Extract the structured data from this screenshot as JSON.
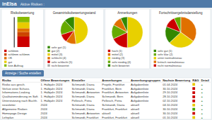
{
  "page": {
    "title": "inElsa",
    "subtitle": "Aktive Risiken :",
    "button": "Anzeige / Suche erstellen"
  },
  "chart_data": [
    {
      "type": "bar",
      "title": "Risikobewertung",
      "stacked": true,
      "categories": [
        null
      ],
      "series": [
        {
          "name": "schlimm",
          "color": "#cc0000",
          "values": [
            35
          ]
        },
        {
          "name": "schlimm schlimm",
          "color": "#cc4400",
          "values": [
            15
          ]
        },
        {
          "name": "OK",
          "color": "#e07000",
          "values": [
            12
          ]
        },
        {
          "name": "gut",
          "color": "#e8cc00",
          "values": [
            20
          ]
        },
        {
          "name": "kein Auftrag",
          "color": "#88bb00",
          "values": [
            18
          ]
        }
      ],
      "ylim": [
        0,
        100
      ],
      "tick_labels": false,
      "legend": "bottom"
    },
    {
      "type": "pie",
      "title": "Gesamtrisikobewertungsstand",
      "values": [
        48,
        12,
        10,
        18,
        12
      ],
      "colors": [
        "#e8d000",
        "#e07000",
        "#cc0000",
        "#66aa00",
        "#338800"
      ],
      "legend": "bottom",
      "legend_items": [
        {
          "label": "sehr gut (1)",
          "color": "#338800"
        },
        {
          "label": "gut (2)",
          "color": "#66aa00"
        },
        {
          "label": "mittel (3)",
          "color": "#e8d000"
        },
        {
          "label": "schlecht (4)",
          "color": "#e07000"
        },
        {
          "label": "sehr schlecht (5)",
          "color": "#cc0000"
        },
        {
          "label": "nicht bewertet",
          "color": "#aaaaaa"
        }
      ]
    },
    {
      "type": "pie",
      "title": "Anmerkungen",
      "values": [
        50,
        18,
        15,
        10,
        7
      ],
      "colors": [
        "#e8d000",
        "#cc0000",
        "#66aa00",
        "#e07000",
        "#338800"
      ],
      "legend": "bottom",
      "legend_items": [
        {
          "label": "hoch (1)",
          "color": "#cc0000"
        },
        {
          "label": "mittel (2)",
          "color": "#e07000"
        },
        {
          "label": "niedrig (3)",
          "color": "#e8d000"
        },
        {
          "label": "sehr niedrig (4)",
          "color": "#66aa00"
        },
        {
          "label": "nicht bewertet",
          "color": "#338800"
        }
      ]
    },
    {
      "type": "pie",
      "title": "Fortschrittsergebnisdarstellung",
      "values": [
        35,
        28,
        18,
        12,
        7
      ],
      "colors": [
        "#e07000",
        "#e8d000",
        "#338800",
        "#cc0000",
        "#66aa00"
      ],
      "legend": "bottom",
      "legend_items": [
        {
          "label": "sehr gut (1)",
          "color": "#338800"
        },
        {
          "label": "sehr klar (2)",
          "color": "#66aa00"
        },
        {
          "label": "unter normalniveau",
          "color": "#e8d000"
        },
        {
          "label": "kritisch normalniveau",
          "color": "#e07000"
        },
        {
          "label": "nicht normalniveau",
          "color": "#cc0000"
        }
      ]
    },
    {
      "type": "table",
      "columns": [
        "Risiko",
        "Offene Bewertungen",
        "Einsteller",
        "Anmerkungen",
        "Anmerkungsgruppen",
        "Nachste Bewertung",
        "RAG",
        "Detail"
      ],
      "rows": [
        [
          "Risiko aus gesch.",
          "1. Halbjahr 2024",
          "Schmandt, Diana",
          "Projekt, Frankfurt",
          "Aufgabenliste",
          "01.04.2024",
          "#e8c800",
          "+"
        ],
        [
          "Verlust einer Schuss.",
          "1. Halbjahr 2024",
          "Schmandt, Diana",
          "Frankfurt, Bern",
          "Aufgabenliste",
          "30.10.2024",
          "#cc0000",
          "+"
        ],
        [
          "Informations-Leaking",
          "1. Halbjahr 2024",
          "Schmandt, Antworten",
          "Frankfurt, Antworten",
          "Aufgabenliste",
          "29.10.2024",
          "#cc0000",
          "+"
        ],
        [
          "Qualitatsminderung im Soft.",
          "1. Halbjahr 2024",
          "Schmandt, Diana",
          "Schmandt, Bern",
          "Aufgabenliste",
          "28.10.2024",
          "#cc0000",
          "+"
        ],
        [
          "Unterstutzung nach Buchh.",
          "1. Halbjahr 2024",
          "Pellesch, Petra",
          "Pellesch, Petra",
          "Aufgabenliste",
          "02.10.2024",
          "#cc0000",
          "+"
        ],
        [
          "newsletter",
          "2024",
          "Schmandt, Diana",
          "Schmandt, Diana",
          "aktuell",
          "04.10.2024",
          "#e8c800",
          "+"
        ],
        [
          "Allgemeine Risiken",
          "2024",
          "Schmandt, Diana",
          "Frankfurt, Frankfurt",
          "aktuell",
          "30.10.2024",
          "#44aa00",
          "+"
        ],
        [
          "Homepage-Design",
          "2024",
          "Schmandt, Antworten",
          "aktuell",
          "aktuell",
          "30.10.2024",
          "#cc0000",
          "+"
        ],
        [
          "Lehrplan",
          "2024",
          "Schmandt, Frankfurt",
          "Frankfurt, Frankfurt",
          "aktuell",
          "01.10.2024",
          "#e8c800",
          "+"
        ]
      ]
    }
  ]
}
